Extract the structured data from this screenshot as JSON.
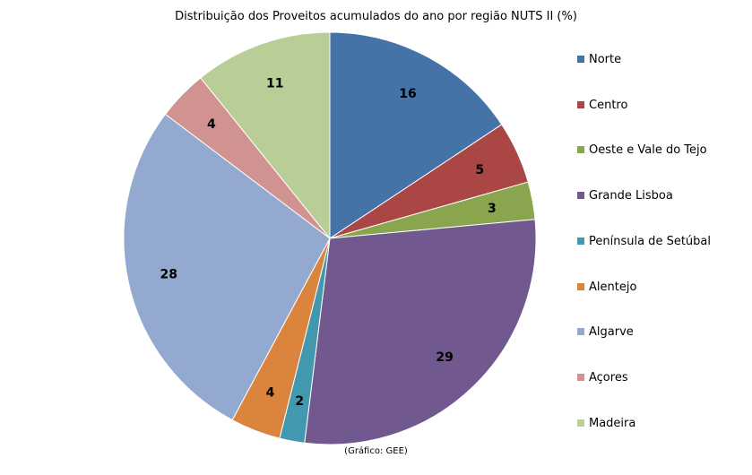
{
  "colors": {
    "Norte": "#4572A7",
    "Centro": "#AA4643",
    "Oeste e Vale do Tejo": "#89A54E",
    "Grande Lisboa": "#71588F",
    "Península de Setúbal": "#4198AF",
    "Alentejo": "#DB843D",
    "Algarve": "#93A9CF",
    "Açores": "#D19392",
    "Madeira": "#B9CD96"
  },
  "chart_data": {
    "type": "pie",
    "title": "Distribuição dos Proveitos acumulados do ano por região NUTS II (%)",
    "categories": [
      "Norte",
      "Centro",
      "Oeste e Vale do Tejo",
      "Grande Lisboa",
      "Península de Setúbal",
      "Alentejo",
      "Algarve",
      "Açores",
      "Madeira"
    ],
    "values": [
      16,
      5,
      3,
      29,
      2,
      4,
      28,
      4,
      11
    ],
    "start_angle_deg": 0,
    "direction": "clockwise",
    "legend_position": "right",
    "source": "(Gráfico: GEE)"
  }
}
